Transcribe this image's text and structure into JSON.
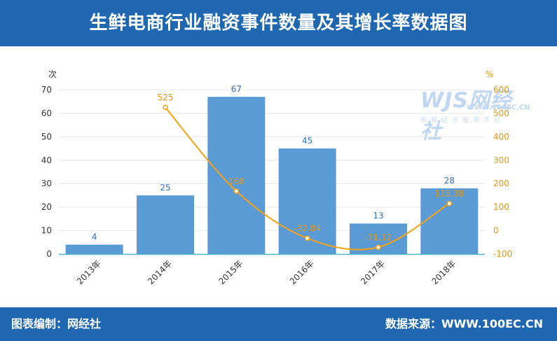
{
  "header": {
    "title": "生鲜电商行业融资事件数量及其增长率数据图"
  },
  "footer": {
    "left": "图表编制：网经社",
    "right": "数据来源：WWW.100EC.CN"
  },
  "watermark": {
    "logo": "WJS网经社",
    "url": "WWW.100EC.CN",
    "sub": "网络经济服务平台"
  },
  "colors": {
    "header_bg": "#1f68b1",
    "bar": "#5b9bd5",
    "line": "#f5a214",
    "axis_right": "#e8960a"
  },
  "chart_data": {
    "type": "bar",
    "categories": [
      "2013年",
      "2014年",
      "2015年",
      "2016年",
      "2017年",
      "2018年"
    ],
    "series": [
      {
        "type": "bar",
        "axis": "left",
        "values": [
          4,
          25,
          67,
          45,
          13,
          28
        ],
        "labels": [
          "4",
          "25",
          "67",
          "45",
          "13",
          "28"
        ]
      },
      {
        "type": "line",
        "axis": "right",
        "values": [
          null,
          525,
          168,
          -32.84,
          -71.12,
          115.38
        ],
        "labels": [
          "",
          "525",
          "168",
          "-32.84",
          "-71.12",
          "115.38"
        ]
      }
    ],
    "ylabel": "次",
    "ylabel_right": "%",
    "ylim": [
      0,
      70
    ],
    "yticks": [
      0,
      10,
      20,
      30,
      40,
      50,
      60,
      70
    ],
    "ylim_right": [
      -100,
      600
    ],
    "yticks_right": [
      -100,
      0,
      100,
      200,
      300,
      400,
      500,
      600
    ],
    "grid": true
  }
}
